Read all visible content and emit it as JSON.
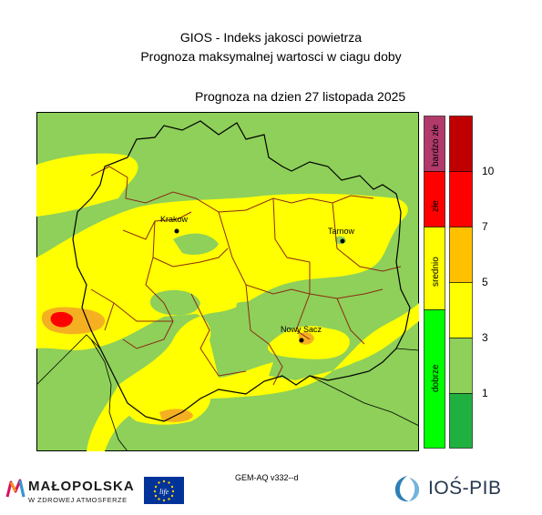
{
  "header": {
    "title": "GIOS - Indeks jakosci powietrza",
    "subtitle": "Prognoza maksymalnej wartosci w ciagu doby",
    "forecast_label": "Prognoza na dzien",
    "forecast_date": "27 listopada 2025"
  },
  "map": {
    "colors": {
      "background_green": "#8ed059",
      "yellow": "#ffff00",
      "orange": "#f5b021",
      "red": "#ff0000",
      "district_border": "#8b2a15",
      "region_border": "#000000"
    },
    "cities": [
      {
        "name": "Krakow"
      },
      {
        "name": "Tarnow"
      },
      {
        "name": "Nowy Sacz"
      }
    ]
  },
  "legend": {
    "categories": [
      {
        "label": "bardzo złe",
        "color": "#b13a6a"
      },
      {
        "label": "złe",
        "color": "#ff0000"
      },
      {
        "label": "srednio",
        "color": "#ffff00"
      },
      {
        "label": "dobrze",
        "color": "#00ff00"
      }
    ],
    "scale_colors": [
      "#c00000",
      "#ff0000",
      "#ffc000",
      "#ffff00",
      "#8ed059",
      "#20b040"
    ],
    "ticks": [
      "10",
      "7",
      "5",
      "3",
      "1"
    ]
  },
  "footer": {
    "model": "GEM-AQ v332--d",
    "malopolska_name": "MAŁOPOLSKA",
    "malopolska_slogan": "W ZDROWEJ ATMOSFERZE",
    "ios_name": "IOŚ-PIB",
    "eu_logo_text": "life"
  }
}
